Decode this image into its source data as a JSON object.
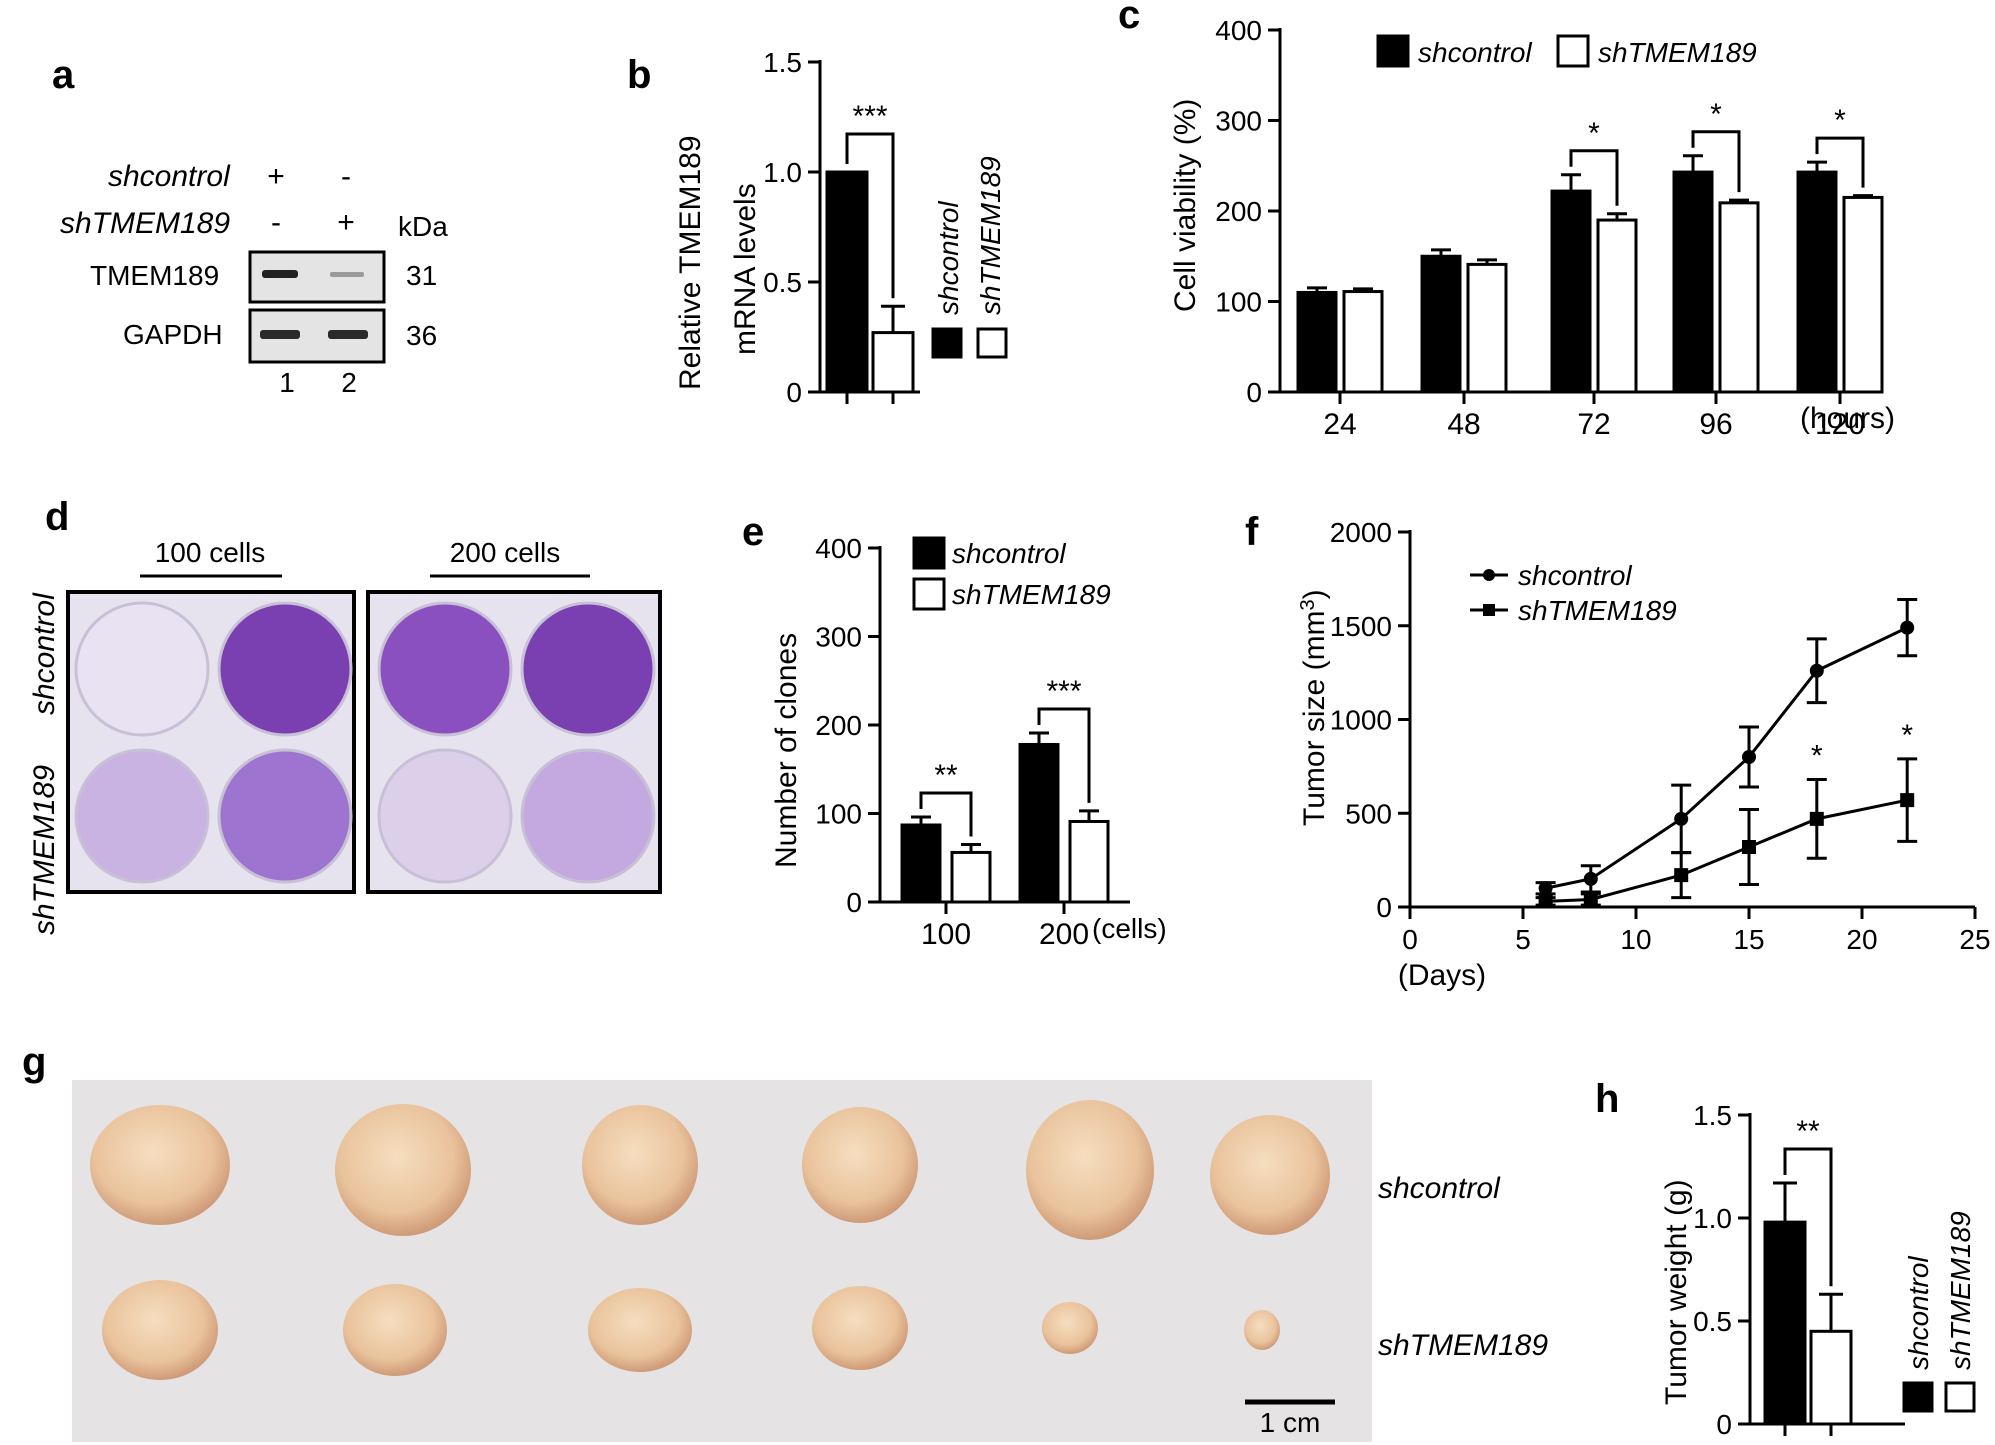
{
  "panel_labels": [
    "a",
    "b",
    "c",
    "d",
    "e",
    "f",
    "g",
    "h"
  ],
  "groups": {
    "control": "shcontrol",
    "knockdown": "shTMEM189"
  },
  "western": {
    "row_labels": [
      "TMEM189",
      "GAPDH"
    ],
    "kda_label": "kDa",
    "kda_values": [
      "31",
      "36"
    ],
    "lane_numbers": [
      "1",
      "2"
    ],
    "lane1_marks": [
      "+",
      "-"
    ],
    "lane2_marks": [
      "-",
      "+"
    ]
  },
  "colony_image": {
    "header_100": "100 cells",
    "header_200": "200 cells",
    "well_color": "#7a3fb0"
  },
  "tumor_photo": {
    "scale_label": "1 cm",
    "tissue_color": "#ecc9a4"
  },
  "colors": {
    "bar_control": "#000000",
    "bar_knockdown": "#ffffff",
    "axis": "#000000"
  },
  "chart_data": [
    {
      "id": "b",
      "type": "bar",
      "ylabel_line1": "Relative TMEM189",
      "ylabel_line2": "mRNA levels",
      "ylim": [
        0,
        1.5
      ],
      "ytick_labels": [
        "0",
        "0.5",
        "1.0",
        "1.5"
      ],
      "yticks": [
        0,
        0.5,
        1.0,
        1.5
      ],
      "series": [
        {
          "name": "shcontrol",
          "values": [
            1.0
          ],
          "errors": [
            0
          ]
        },
        {
          "name": "shTMEM189",
          "values": [
            0.27
          ],
          "errors": [
            0.12
          ]
        }
      ],
      "significance": [
        "***"
      ]
    },
    {
      "id": "c",
      "type": "bar",
      "ylabel": "Cell viability (%)",
      "xunit": "(hours)",
      "categories": [
        "24",
        "48",
        "72",
        "96",
        "120"
      ],
      "ylim": [
        0,
        400
      ],
      "ytick_labels": [
        "0",
        "100",
        "200",
        "300",
        "400"
      ],
      "yticks": [
        0,
        100,
        200,
        300,
        400
      ],
      "series": [
        {
          "name": "shcontrol",
          "values": [
            110,
            150,
            222,
            243,
            243
          ],
          "errors": [
            5,
            7,
            18,
            18,
            11
          ]
        },
        {
          "name": "shTMEM189",
          "values": [
            111,
            141,
            190,
            209,
            215
          ],
          "errors": [
            3,
            5,
            7,
            3,
            2
          ]
        }
      ],
      "significance": [
        "",
        "",
        "*",
        "*",
        "*"
      ]
    },
    {
      "id": "e",
      "type": "bar",
      "ylabel": "Number of clones",
      "xunit": "(cells)",
      "categories": [
        "100",
        "200"
      ],
      "ylim": [
        0,
        400
      ],
      "ytick_labels": [
        "0",
        "100",
        "200",
        "300",
        "400"
      ],
      "yticks": [
        0,
        100,
        200,
        300,
        400
      ],
      "series": [
        {
          "name": "shcontrol",
          "values": [
            87,
            178
          ],
          "errors": [
            9,
            13
          ]
        },
        {
          "name": "shTMEM189",
          "values": [
            56,
            91
          ],
          "errors": [
            9,
            12
          ]
        }
      ],
      "significance": [
        "**",
        "***"
      ]
    },
    {
      "id": "f",
      "type": "line",
      "ylabel": "Tumor size (mm",
      "ylabel_sup": "3",
      "ylabel_end": ")",
      "xlabel": "(Days)",
      "xlim": [
        0,
        25
      ],
      "xtick_labels": [
        "0",
        "5",
        "10",
        "15",
        "20",
        "25"
      ],
      "xticks": [
        0,
        5,
        10,
        15,
        20,
        25
      ],
      "ylim": [
        0,
        2000
      ],
      "ytick_labels": [
        "0",
        "500",
        "1000",
        "1500",
        "2000"
      ],
      "yticks": [
        0,
        500,
        1000,
        1500,
        2000
      ],
      "x": [
        6,
        8,
        12,
        15,
        18,
        22
      ],
      "series": [
        {
          "name": "shcontrol",
          "marker": "circle",
          "values": [
            100,
            150,
            470,
            800,
            1260,
            1490
          ],
          "errors": [
            30,
            70,
            180,
            160,
            170,
            150
          ]
        },
        {
          "name": "shTMEM189",
          "marker": "square",
          "values": [
            30,
            40,
            170,
            320,
            470,
            570
          ],
          "errors": [
            20,
            30,
            120,
            200,
            210,
            220
          ]
        }
      ],
      "significance": [
        "",
        "",
        "",
        "",
        "*",
        "*"
      ]
    },
    {
      "id": "h",
      "type": "bar",
      "ylabel": "Tumor weight (g)",
      "ylim": [
        0,
        1.5
      ],
      "ytick_labels": [
        "0",
        "0.5",
        "1.0",
        "1.5"
      ],
      "yticks": [
        0,
        0.5,
        1.0,
        1.5
      ],
      "series": [
        {
          "name": "shcontrol",
          "values": [
            0.98
          ],
          "errors": [
            0.19
          ]
        },
        {
          "name": "shTMEM189",
          "values": [
            0.45
          ],
          "errors": [
            0.18
          ]
        }
      ],
      "significance": [
        "**"
      ]
    }
  ]
}
